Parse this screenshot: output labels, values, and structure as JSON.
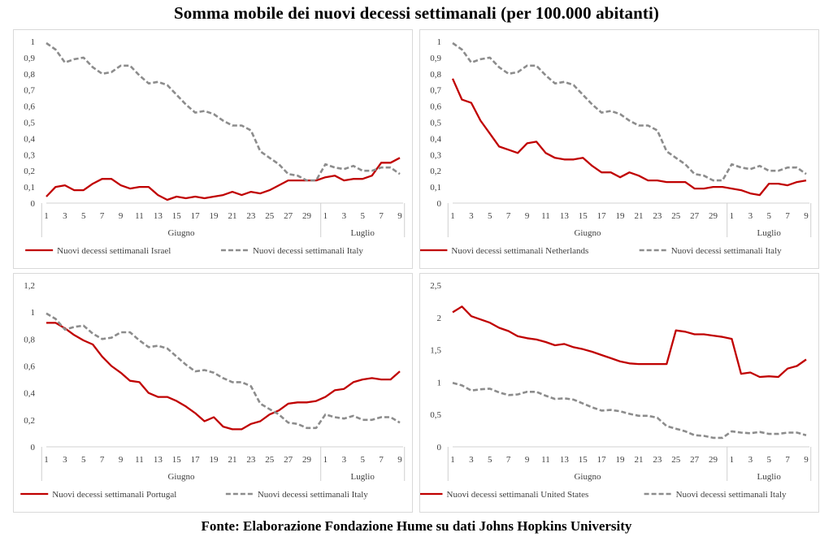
{
  "title": "Somma mobile dei nuovi decessi settimanali (per 100.000 abitanti)",
  "source": "Fonte: Elaborazione Fondazione Hume su dati Johns Hopkins University",
  "colors": {
    "series": "#c00000",
    "italy": "#8c8c8c"
  },
  "chart_data": [
    {
      "type": "line",
      "x_tick_labels": [
        "1",
        "3",
        "5",
        "7",
        "9",
        "11",
        "13",
        "15",
        "17",
        "19",
        "21",
        "23",
        "25",
        "27",
        "29",
        "1",
        "3",
        "5",
        "7",
        "9"
      ],
      "group_labels": [
        "Giugno",
        "Luglio"
      ],
      "y_tick_labels": [
        "0",
        "0,1",
        "0,2",
        "0,3",
        "0,4",
        "0,5",
        "0,6",
        "0,7",
        "0,8",
        "0,9",
        "1"
      ],
      "ylim": [
        0,
        1
      ],
      "series": [
        {
          "name": "Nuovi decessi settimanali Israel",
          "style": "solid",
          "values": [
            0.04,
            0.1,
            0.11,
            0.08,
            0.08,
            0.12,
            0.15,
            0.15,
            0.11,
            0.09,
            0.1,
            0.1,
            0.05,
            0.02,
            0.04,
            0.03,
            0.04,
            0.03,
            0.04,
            0.05,
            0.07,
            0.05,
            0.07,
            0.06,
            0.08,
            0.11,
            0.14,
            0.14,
            0.14,
            0.14,
            0.16,
            0.17,
            0.14,
            0.15,
            0.15,
            0.17,
            0.25,
            0.25,
            0.28
          ]
        },
        {
          "name": "Nuovi decessi settimanali Italy",
          "style": "dashed",
          "values": [
            0.99,
            0.95,
            0.87,
            0.89,
            0.9,
            0.84,
            0.8,
            0.81,
            0.85,
            0.85,
            0.79,
            0.74,
            0.75,
            0.73,
            0.67,
            0.61,
            0.56,
            0.57,
            0.55,
            0.51,
            0.48,
            0.48,
            0.45,
            0.32,
            0.28,
            0.24,
            0.18,
            0.17,
            0.14,
            0.14,
            0.24,
            0.22,
            0.21,
            0.23,
            0.2,
            0.2,
            0.22,
            0.22,
            0.18
          ]
        }
      ]
    },
    {
      "type": "line",
      "x_tick_labels": [
        "1",
        "3",
        "5",
        "7",
        "9",
        "11",
        "13",
        "15",
        "17",
        "19",
        "21",
        "23",
        "25",
        "27",
        "29",
        "1",
        "3",
        "5",
        "7",
        "9"
      ],
      "group_labels": [
        "Giugno",
        "Luglio"
      ],
      "y_tick_labels": [
        "0",
        "0,1",
        "0,2",
        "0,3",
        "0,4",
        "0,5",
        "0,6",
        "0,7",
        "0,8",
        "0,9",
        "1"
      ],
      "ylim": [
        0,
        1
      ],
      "series": [
        {
          "name": "Nuovi decessi settimanali Netherlands",
          "style": "solid",
          "values": [
            0.77,
            0.64,
            0.62,
            0.51,
            0.43,
            0.35,
            0.33,
            0.31,
            0.37,
            0.38,
            0.31,
            0.28,
            0.27,
            0.27,
            0.28,
            0.23,
            0.19,
            0.19,
            0.16,
            0.19,
            0.17,
            0.14,
            0.14,
            0.13,
            0.13,
            0.13,
            0.09,
            0.09,
            0.1,
            0.1,
            0.09,
            0.08,
            0.06,
            0.05,
            0.12,
            0.12,
            0.11,
            0.13,
            0.14
          ]
        },
        {
          "name": "Nuovi decessi settimanali Italy",
          "style": "dashed",
          "values": [
            0.99,
            0.95,
            0.87,
            0.89,
            0.9,
            0.84,
            0.8,
            0.81,
            0.85,
            0.85,
            0.79,
            0.74,
            0.75,
            0.73,
            0.67,
            0.61,
            0.56,
            0.57,
            0.55,
            0.51,
            0.48,
            0.48,
            0.45,
            0.32,
            0.28,
            0.24,
            0.18,
            0.17,
            0.14,
            0.14,
            0.24,
            0.22,
            0.21,
            0.23,
            0.2,
            0.2,
            0.22,
            0.22,
            0.18
          ]
        }
      ]
    },
    {
      "type": "line",
      "x_tick_labels": [
        "1",
        "3",
        "5",
        "7",
        "9",
        "11",
        "13",
        "15",
        "17",
        "19",
        "21",
        "23",
        "25",
        "27",
        "29",
        "1",
        "3",
        "5",
        "7",
        "9"
      ],
      "group_labels": [
        "Giugno",
        "Luglio"
      ],
      "y_tick_labels": [
        "0",
        "0,2",
        "0,4",
        "0,6",
        "0,8",
        "1",
        "1,2"
      ],
      "ylim": [
        0,
        1.2
      ],
      "series": [
        {
          "name": "Nuovi decessi settimanali Portugal",
          "style": "solid",
          "values": [
            0.92,
            0.92,
            0.88,
            0.83,
            0.79,
            0.76,
            0.67,
            0.6,
            0.55,
            0.49,
            0.48,
            0.4,
            0.37,
            0.37,
            0.34,
            0.3,
            0.25,
            0.19,
            0.22,
            0.15,
            0.13,
            0.13,
            0.17,
            0.19,
            0.24,
            0.27,
            0.32,
            0.33,
            0.33,
            0.34,
            0.37,
            0.42,
            0.43,
            0.48,
            0.5,
            0.51,
            0.5,
            0.5,
            0.56
          ]
        },
        {
          "name": "Nuovi decessi settimanali Italy",
          "style": "dashed",
          "values": [
            0.99,
            0.95,
            0.87,
            0.89,
            0.9,
            0.84,
            0.8,
            0.81,
            0.85,
            0.85,
            0.79,
            0.74,
            0.75,
            0.73,
            0.67,
            0.61,
            0.56,
            0.57,
            0.55,
            0.51,
            0.48,
            0.48,
            0.45,
            0.32,
            0.28,
            0.24,
            0.18,
            0.17,
            0.14,
            0.14,
            0.24,
            0.22,
            0.21,
            0.23,
            0.2,
            0.2,
            0.22,
            0.22,
            0.18
          ]
        }
      ]
    },
    {
      "type": "line",
      "x_tick_labels": [
        "1",
        "3",
        "5",
        "7",
        "9",
        "11",
        "13",
        "15",
        "17",
        "19",
        "21",
        "23",
        "25",
        "27",
        "29",
        "1",
        "3",
        "5",
        "7",
        "9"
      ],
      "group_labels": [
        "Giugno",
        "Luglio"
      ],
      "y_tick_labels": [
        "0",
        "0,5",
        "1",
        "1,5",
        "2",
        "2,5"
      ],
      "ylim": [
        0,
        2.5
      ],
      "series": [
        {
          "name": "Nuovi decessi settimanali United States",
          "style": "solid",
          "values": [
            2.08,
            2.17,
            2.02,
            1.97,
            1.92,
            1.84,
            1.79,
            1.71,
            1.68,
            1.66,
            1.62,
            1.57,
            1.59,
            1.54,
            1.51,
            1.47,
            1.42,
            1.37,
            1.32,
            1.29,
            1.28,
            1.28,
            1.28,
            1.28,
            1.8,
            1.78,
            1.74,
            1.74,
            1.72,
            1.7,
            1.67,
            1.13,
            1.15,
            1.08,
            1.09,
            1.08,
            1.21,
            1.25,
            1.35
          ]
        },
        {
          "name": "Nuovi decessi settimanali Italy",
          "style": "dashed",
          "values": [
            0.99,
            0.95,
            0.87,
            0.89,
            0.9,
            0.84,
            0.8,
            0.81,
            0.85,
            0.85,
            0.79,
            0.74,
            0.75,
            0.73,
            0.67,
            0.61,
            0.56,
            0.57,
            0.55,
            0.51,
            0.48,
            0.48,
            0.45,
            0.32,
            0.28,
            0.24,
            0.18,
            0.17,
            0.14,
            0.14,
            0.24,
            0.22,
            0.21,
            0.23,
            0.2,
            0.2,
            0.22,
            0.22,
            0.18
          ]
        }
      ]
    }
  ]
}
